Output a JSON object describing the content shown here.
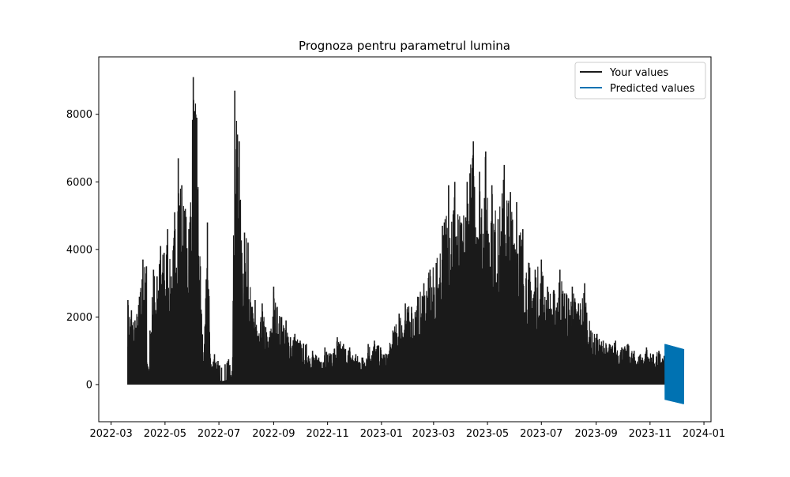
{
  "chart_data": {
    "type": "line",
    "title": "Prognoza pentru parametrul lumina",
    "xlabel": "",
    "ylabel": "",
    "x_axis": "date",
    "xlim": [
      "2022-02-15",
      "2024-01-09"
    ],
    "ylim": [
      -1100,
      9700
    ],
    "xticks": [
      "2022-03",
      "2022-05",
      "2022-07",
      "2022-09",
      "2022-11",
      "2023-01",
      "2023-03",
      "2023-05",
      "2023-07",
      "2023-09",
      "2023-11",
      "2024-01"
    ],
    "xtick_labels": [
      "2022-03",
      "2022-05",
      "2022-07",
      "2022-09",
      "2022-11",
      "2023-01",
      "2023-03",
      "2023-05",
      "2023-07",
      "2023-09",
      "2023-11",
      "2024-01"
    ],
    "yticks": [
      0,
      2000,
      4000,
      6000,
      8000
    ],
    "ytick_labels": [
      "0",
      "2000",
      "4000",
      "6000",
      "8000"
    ],
    "grid": false,
    "legend_position": "top-right",
    "series": [
      {
        "name": "Your values",
        "color": "#1a1a1a",
        "style": "daily oscillation between 0 and the daily peak",
        "x": [
          "2022-03-20",
          "2022-03-24",
          "2022-03-28",
          "2022-04-02",
          "2022-04-06",
          "2022-04-10",
          "2022-04-14",
          "2022-04-18",
          "2022-04-22",
          "2022-04-26",
          "2022-04-30",
          "2022-05-04",
          "2022-05-08",
          "2022-05-12",
          "2022-05-16",
          "2022-05-20",
          "2022-05-24",
          "2022-05-28",
          "2022-06-02",
          "2022-06-06",
          "2022-06-10",
          "2022-06-14",
          "2022-06-18",
          "2022-06-22",
          "2022-06-26",
          "2022-06-30",
          "2022-07-04",
          "2022-07-08",
          "2022-07-12",
          "2022-07-16",
          "2022-07-19",
          "2022-07-22",
          "2022-07-24",
          "2022-07-27",
          "2022-07-30",
          "2022-08-03",
          "2022-08-07",
          "2022-08-11",
          "2022-08-15",
          "2022-08-19",
          "2022-08-23",
          "2022-08-27",
          "2022-09-01",
          "2022-09-05",
          "2022-09-10",
          "2022-09-15",
          "2022-09-20",
          "2022-09-25",
          "2022-10-01",
          "2022-10-08",
          "2022-10-15",
          "2022-10-22",
          "2022-10-29",
          "2022-11-05",
          "2022-11-12",
          "2022-11-19",
          "2022-11-26",
          "2022-12-03",
          "2022-12-10",
          "2022-12-17",
          "2022-12-24",
          "2022-12-31",
          "2023-01-07",
          "2023-01-14",
          "2023-01-21",
          "2023-01-28",
          "2023-02-04",
          "2023-02-11",
          "2023-02-18",
          "2023-02-25",
          "2023-03-04",
          "2023-03-11",
          "2023-03-18",
          "2023-03-25",
          "2023-04-01",
          "2023-04-08",
          "2023-04-15",
          "2023-04-22",
          "2023-04-29",
          "2023-05-06",
          "2023-05-13",
          "2023-05-20",
          "2023-05-27",
          "2023-06-03",
          "2023-06-10",
          "2023-06-17",
          "2023-06-24",
          "2023-07-01",
          "2023-07-08",
          "2023-07-15",
          "2023-07-22",
          "2023-07-29",
          "2023-08-05",
          "2023-08-12",
          "2023-08-19",
          "2023-08-26",
          "2023-09-02",
          "2023-09-09",
          "2023-09-16",
          "2023-09-23",
          "2023-09-30",
          "2023-10-07",
          "2023-10-14",
          "2023-10-21",
          "2023-10-28",
          "2023-11-04",
          "2023-11-11",
          "2023-11-17"
        ],
        "y": [
          2500,
          2200,
          1900,
          2600,
          3700,
          3500,
          1600,
          3400,
          3200,
          4100,
          3900,
          4600,
          3200,
          5100,
          6700,
          5900,
          5200,
          4600,
          9100,
          7900,
          3500,
          700,
          4800,
          600,
          900,
          700,
          500,
          600,
          750,
          400,
          8700,
          7400,
          7200,
          3900,
          4500,
          4200,
          2300,
          2500,
          1400,
          2400,
          1700,
          1400,
          2900,
          2300,
          2000,
          1900,
          1400,
          1500,
          1300,
          1200,
          1000,
          800,
          1100,
          900,
          1400,
          1200,
          1100,
          900,
          800,
          1200,
          1300,
          1100,
          900,
          1600,
          2100,
          2400,
          2300,
          2600,
          3000,
          3400,
          3600,
          4700,
          5900,
          6000,
          4800,
          6000,
          7200,
          6300,
          6900,
          5900,
          4900,
          6500,
          5700,
          5400,
          4600,
          3600,
          3400,
          3700,
          2900,
          2800,
          3400,
          2700,
          2900,
          2400,
          3000,
          1600,
          1500,
          1300,
          1200,
          1300,
          1100,
          1200,
          1000,
          900,
          1100,
          900,
          1000,
          850
        ],
        "gaps": [
          [
            "2022-04-10",
            "2022-04-14"
          ],
          [
            "2022-07-02",
            "2022-07-10"
          ]
        ]
      },
      {
        "name": "Predicted values",
        "color": "#0072b2",
        "style": "dense oscillating forecast band",
        "x": [
          "2023-11-18",
          "2023-12-09"
        ],
        "upper": [
          1200,
          1050
        ],
        "lower": [
          -450,
          -580
        ]
      }
    ]
  }
}
